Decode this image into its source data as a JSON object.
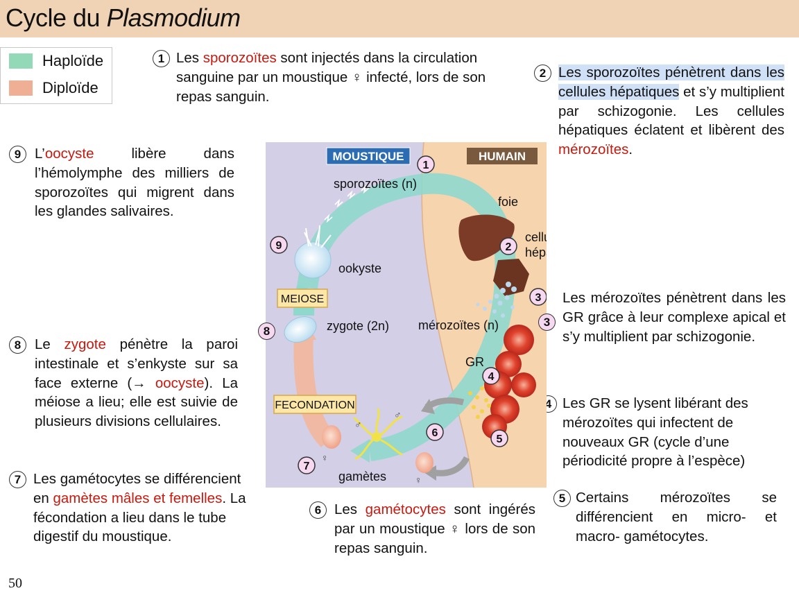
{
  "header": {
    "title_plain": "Cycle du ",
    "title_italic": "Plasmodium",
    "background_color": "#f0d2b4"
  },
  "legend": {
    "items": [
      {
        "label": "Haploïde",
        "color": "#93d9b8"
      },
      {
        "label": "Diploïde",
        "color": "#efaf95"
      }
    ]
  },
  "steps": {
    "s1": {
      "num": "1",
      "a": "Les ",
      "red": "sporozoïtes",
      "b": " sont injectés dans la circulation sanguine par un moustique ♀ infecté, lors de son repas sanguin."
    },
    "s2": {
      "num": "2",
      "hl": "Les sporozoïtes pénètrent dans les cellules hépatiques",
      "a": " et s’y multiplient par schizogonie. Les cellules hépatiques éclatent et libèrent des ",
      "red": "mérozoïtes",
      "b": "."
    },
    "s3": {
      "num": "3",
      "text": "Les mérozoïtes pénètrent dans les GR grâce à leur complexe apical et s’y multiplient par schizogonie."
    },
    "s4": {
      "num": "4",
      "text": "Les GR se lysent libérant des mérozoïtes qui infectent de nouveaux GR (cycle d’une périodicité propre à l’espèce)"
    },
    "s5": {
      "num": "5",
      "text": "Certains mérozoïtes se différencient en micro- et macro- gamétocytes."
    },
    "s6": {
      "num": "6",
      "a": "Les ",
      "red": "gamétocytes",
      "b": " sont ingérés par un moustique ♀ lors de son repas sanguin."
    },
    "s7": {
      "num": "7",
      "a": "Les gamétocytes se différencient en ",
      "red": "gamètes mâles et femelles",
      "b": ". La fécondation a lieu dans le tube digestif du moustique."
    },
    "s8": {
      "num": "8",
      "a": "Le ",
      "red": "zygote",
      "b": " pénètre la paroi intestinale et s’enkyste sur sa face externe (→ ",
      "red2": "oocyste",
      "c": "). La méiose a lieu; elle est suivie de plusieurs divisions cellulaires."
    },
    "s9": {
      "num": "9",
      "a": "L’",
      "red": "oocyste",
      "b": " libère dans l’hémolymphe des milliers de sporozoïtes qui migrent dans les glandes salivaires."
    }
  },
  "diagram": {
    "label_moustique": "MOUSTIQUE",
    "label_humain": "HUMAIN",
    "label_sporozoites": "sporozoïtes (n)",
    "label_foie": "foie",
    "label_cellule": "cellule",
    "label_hepatique": "hépatique",
    "label_ookyste": "ookyste",
    "label_meiose": "MEIOSE",
    "label_zygote": "zygote (2n)",
    "label_merozoites": "mérozoïtes (n)",
    "label_gr": "GR",
    "label_fecondation": "FECONDATION",
    "label_gametes": "gamètes",
    "sym_male": "♂",
    "sym_female": "♀",
    "markers": [
      "1",
      "2",
      "3",
      "4",
      "5",
      "6",
      "7",
      "8",
      "9"
    ],
    "colors": {
      "mosquito_bg": "#d3cfe6",
      "human_bg": "#f5d4ae",
      "haploid_arrow": "#8fd8cd",
      "diploid_arrow": "#f0b9a3",
      "moustique_badge": "#2b6cb3",
      "humain_badge": "#7a5a3f"
    }
  },
  "page_number": "50"
}
